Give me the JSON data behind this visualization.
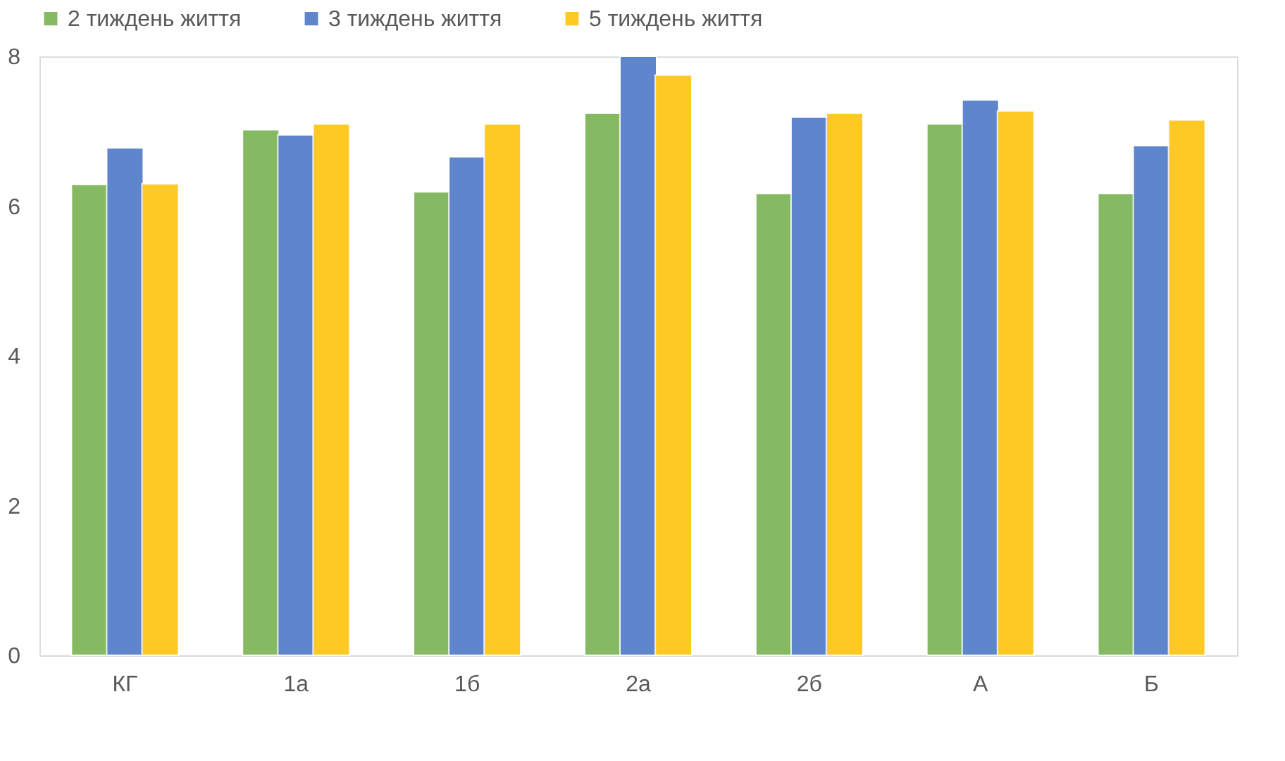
{
  "chart_data": {
    "type": "bar",
    "categories": [
      "КГ",
      "1а",
      "1б",
      "2а",
      "2б",
      "А",
      "Б"
    ],
    "series": [
      {
        "name": "2 тиждень життя",
        "color": "#70ad47",
        "values": [
          6.29,
          7.02,
          6.19,
          7.24,
          6.17,
          7.1,
          6.17
        ]
      },
      {
        "name": "3 тиждень життя",
        "color": "#4472c4",
        "values": [
          6.78,
          6.95,
          6.66,
          8.0,
          7.19,
          7.42,
          6.81
        ]
      },
      {
        "name": "5 тиждень життя",
        "color": "#ffc000",
        "values": [
          6.3,
          7.1,
          7.1,
          7.75,
          7.24,
          7.27,
          7.15
        ]
      }
    ],
    "ylim": [
      0,
      8
    ],
    "yticks": [
      0,
      2,
      4,
      6,
      8
    ],
    "grid": false,
    "legend": "top"
  }
}
